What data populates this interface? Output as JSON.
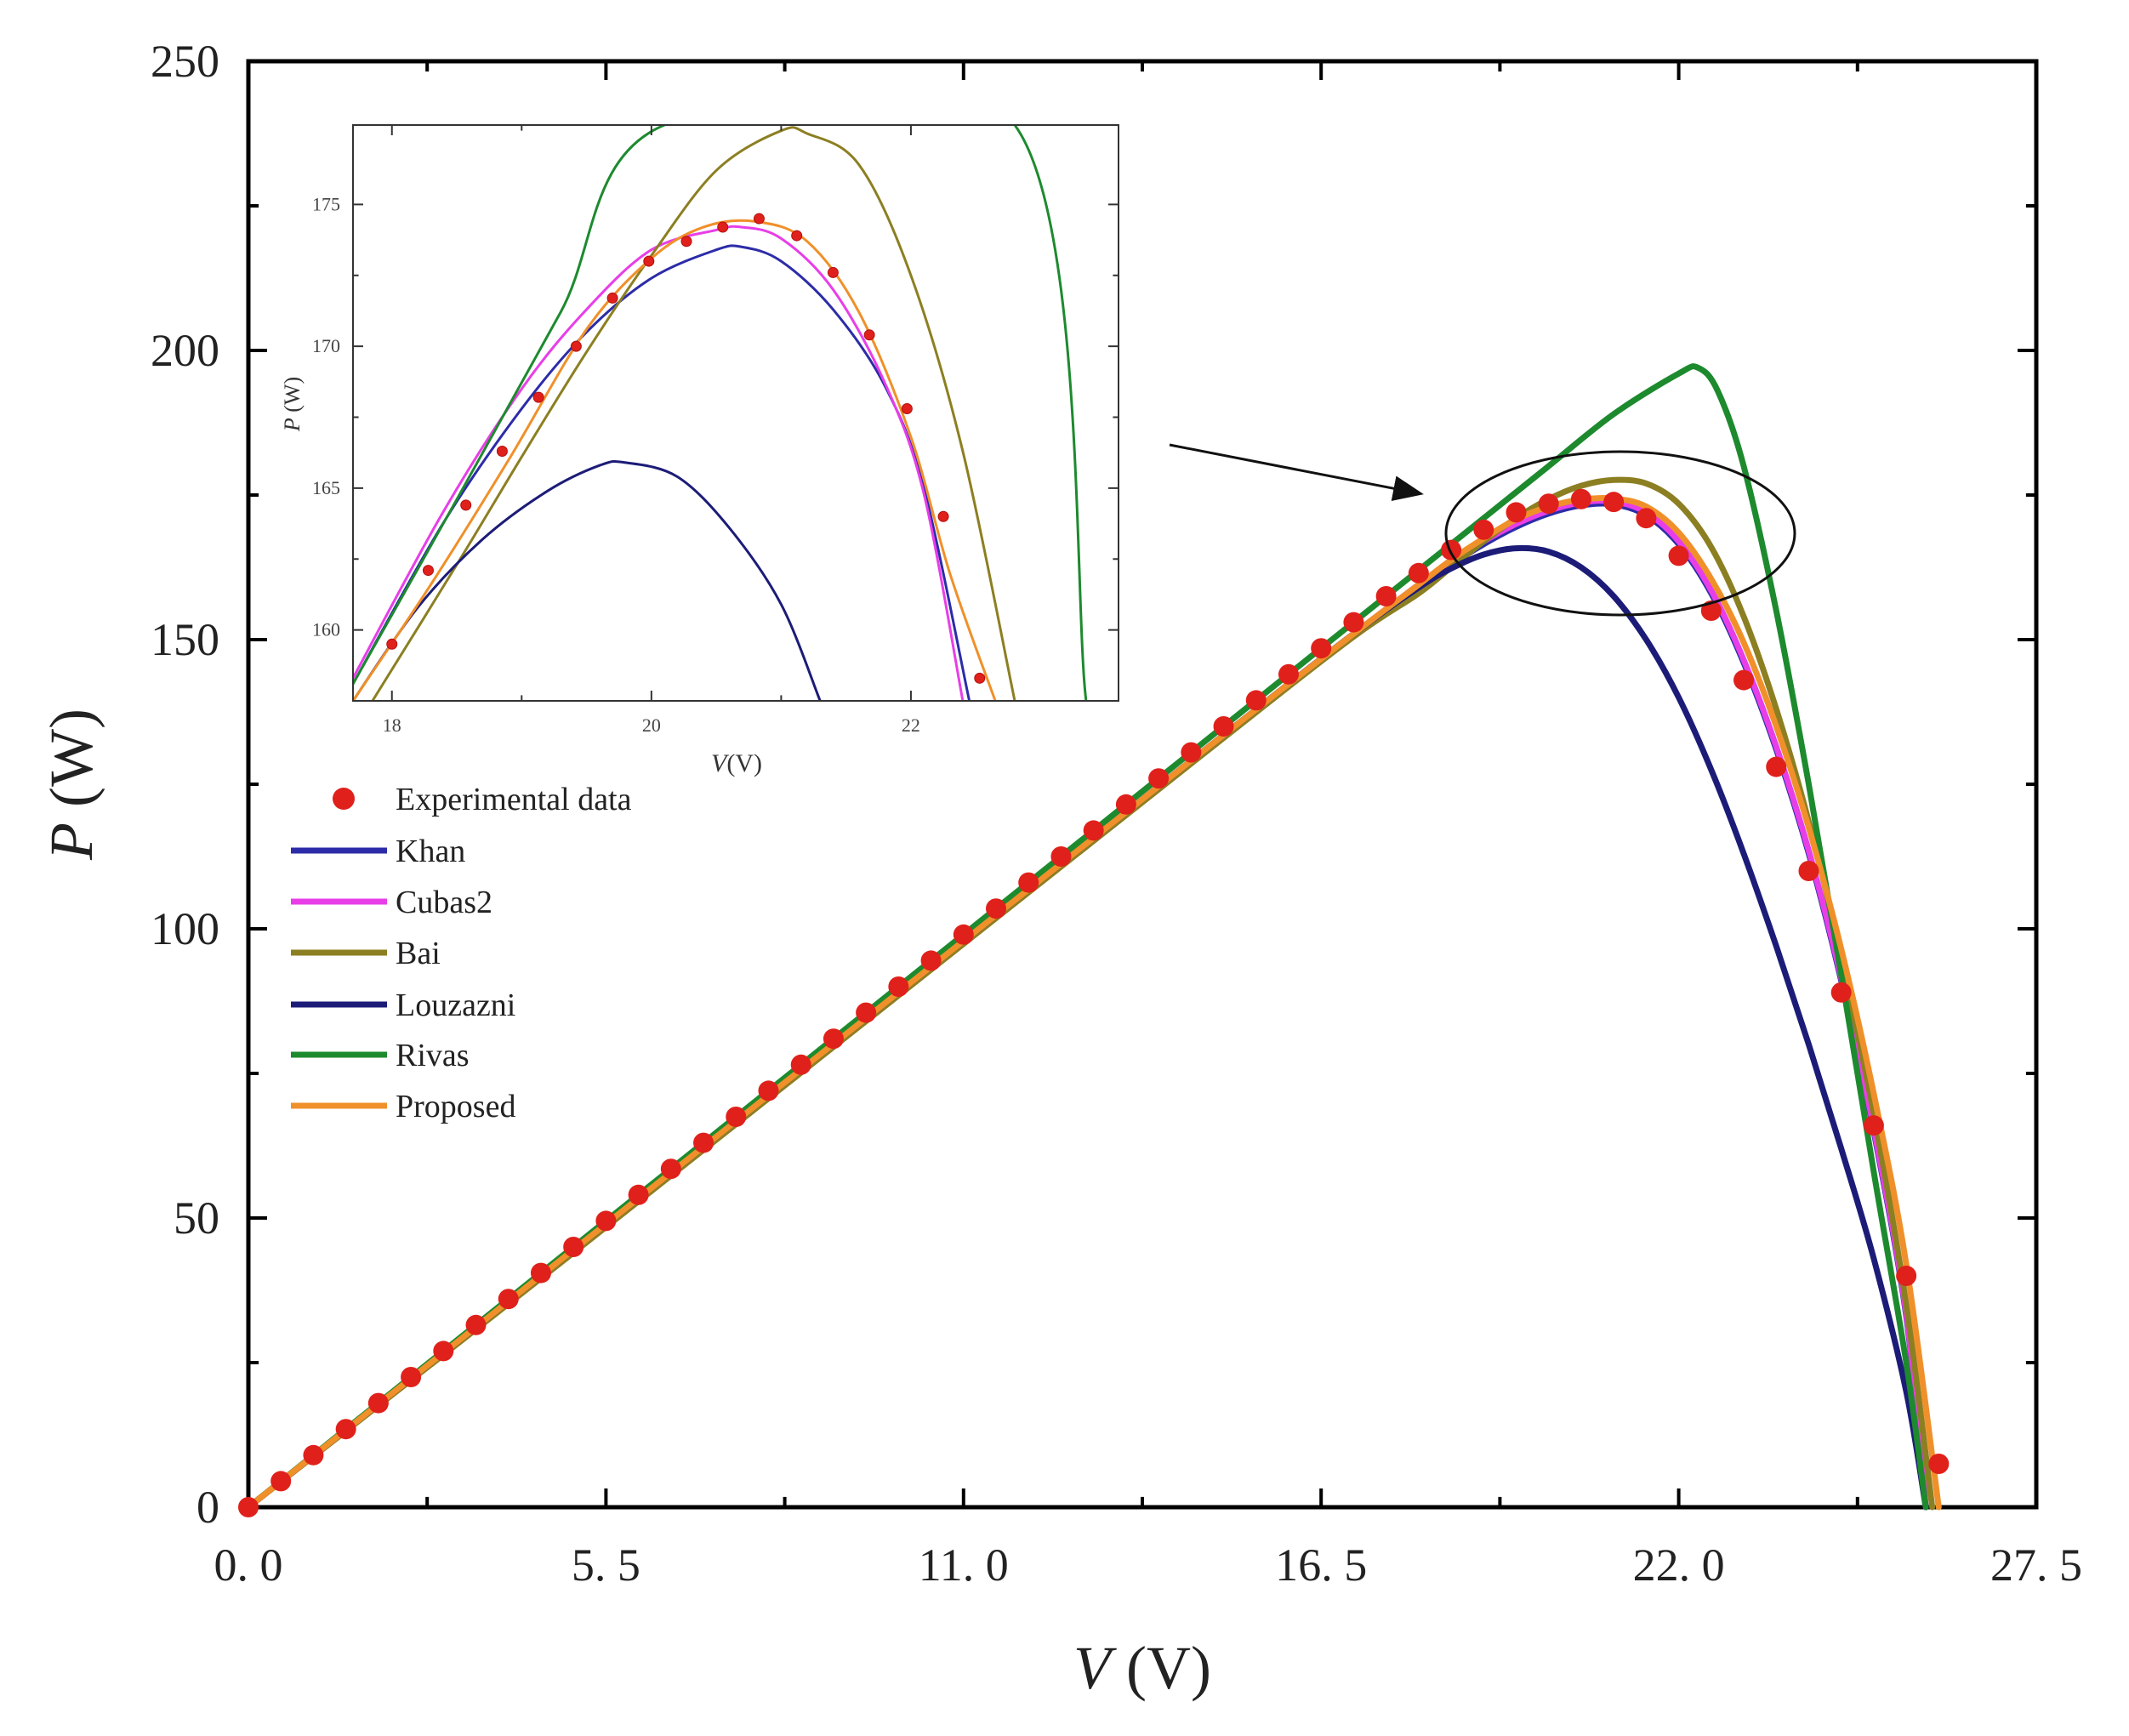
{
  "chart_data": [
    {
      "type": "line",
      "panel": "main",
      "title": "",
      "xlabel": {
        "symbol": "V",
        "unit": "(V)"
      },
      "ylabel": {
        "symbol": "P",
        "unit": "(W)"
      },
      "xlim": [
        0,
        27.5
      ],
      "ylim": [
        0,
        250
      ],
      "xticks": [
        0,
        5.5,
        11,
        16.5,
        22,
        27.5
      ],
      "xtick_labels": [
        "0. 0",
        "5. 5",
        "11. 0",
        "16. 5",
        "22. 0",
        "27. 5"
      ],
      "yticks": [
        0,
        50,
        100,
        150,
        200,
        250
      ],
      "ytick_labels": [
        "0",
        "50",
        "100",
        "150",
        "200",
        "250"
      ],
      "grid": false,
      "legend_position": "middle-left",
      "series": [
        {
          "name": "Experimental data",
          "style": "markers",
          "color": "#e0201b",
          "x": [
            0,
            0.5,
            1,
            1.5,
            2,
            2.5,
            3,
            3.5,
            4,
            4.5,
            5,
            5.5,
            6,
            6.5,
            7,
            7.5,
            8,
            8.5,
            9,
            9.5,
            10,
            10.5,
            11,
            11.5,
            12,
            12.5,
            13,
            13.5,
            14,
            14.5,
            15,
            15.5,
            16,
            16.5,
            17,
            17.5,
            18,
            18.5,
            19,
            19.5,
            20,
            20.5,
            21,
            21.5,
            22,
            22.5,
            23,
            23.5,
            24,
            24.5,
            25,
            25.5,
            26
          ],
          "y": [
            0,
            4.5,
            9,
            13.5,
            18,
            22.5,
            27,
            31.5,
            36,
            40.5,
            45,
            49.5,
            54,
            58.5,
            63,
            67.5,
            72,
            76.5,
            81,
            85.5,
            90,
            94.5,
            99,
            103.5,
            108,
            112.5,
            117,
            121.5,
            126,
            130.5,
            135,
            139.5,
            144,
            148.5,
            153,
            157.5,
            161.5,
            165.5,
            169,
            172,
            173.5,
            174.3,
            173.8,
            171,
            164.5,
            155,
            143,
            128,
            110,
            89,
            66,
            40,
            7.5
          ]
        },
        {
          "name": "Khan",
          "style": "line",
          "color": "#2c2ca8",
          "x": [
            0,
            5,
            10,
            15,
            17,
            18,
            18.5,
            19,
            19.5,
            20,
            20.5,
            21,
            21.5,
            22,
            22.5,
            23,
            23.5,
            24,
            24.5,
            25,
            25.5,
            25.8
          ],
          "y": [
            0,
            44.5,
            89,
            133.5,
            151,
            159,
            163,
            166.5,
            169.5,
            171.8,
            173.2,
            173.4,
            171.5,
            166.5,
            158,
            146,
            131,
            113,
            91,
            65,
            33,
            0
          ]
        },
        {
          "name": "Cubas2",
          "style": "line",
          "color": "#e83ee8",
          "x": [
            0,
            5,
            10,
            15,
            17,
            18,
            18.5,
            19,
            19.5,
            20,
            20.5,
            21,
            21.5,
            22,
            22.5,
            23,
            23.5,
            24,
            24.5,
            25,
            25.5,
            25.8
          ],
          "y": [
            0,
            44.5,
            89,
            133.5,
            151,
            159.5,
            163.5,
            167,
            170,
            172.3,
            173.7,
            173.9,
            172,
            167,
            158.5,
            146.5,
            131.5,
            113.5,
            91.5,
            65.5,
            33.5,
            0
          ]
        },
        {
          "name": "Bai",
          "style": "line",
          "color": "#8c7f22",
          "x": [
            0,
            5,
            10,
            15,
            17,
            18,
            18.5,
            19,
            19.5,
            20,
            20.5,
            21,
            21.5,
            22,
            22.5,
            23,
            23.5,
            24,
            24.5,
            25,
            25.5,
            25.9
          ],
          "y": [
            0,
            44,
            88.5,
            133,
            150.5,
            158,
            162.5,
            167,
            171,
            174.3,
            176.6,
            177.6,
            177,
            173.5,
            166,
            154,
            138,
            118.5,
            95,
            68,
            35,
            0
          ]
        },
        {
          "name": "Louzazni",
          "style": "line",
          "color": "#1c1c78",
          "x": [
            0,
            5,
            10,
            15,
            17,
            18,
            18.5,
            19,
            19.5,
            20,
            20.5,
            21,
            21.5,
            22,
            22.5,
            23,
            23.5,
            24,
            24.5,
            25,
            25.5,
            25.8
          ],
          "y": [
            0,
            44.5,
            89,
            133.5,
            151,
            159,
            162.3,
            164.7,
            165.8,
            165.2,
            162.5,
            157.5,
            150,
            140,
            127.5,
            113,
            97,
            80,
            62,
            43,
            20,
            0
          ]
        },
        {
          "name": "Rivas",
          "style": "line",
          "color": "#1d8a2e",
          "x": [
            0,
            5,
            10,
            15,
            17,
            18,
            19,
            20,
            21,
            22,
            22.3,
            22.6,
            23,
            23.5,
            24,
            24.5,
            25,
            25.5,
            25.8
          ],
          "y": [
            0,
            45,
            90,
            135,
            153,
            162,
            171,
            180,
            189,
            196,
            197,
            193,
            180,
            155,
            125,
            92,
            58,
            25,
            0
          ]
        },
        {
          "name": "Proposed",
          "style": "line",
          "color": "#f0902a",
          "x": [
            0,
            5,
            10,
            15,
            17,
            18,
            18.5,
            19,
            19.5,
            20,
            20.5,
            21,
            21.5,
            22,
            22.5,
            23,
            23.5,
            24,
            24.5,
            25,
            25.5,
            26
          ],
          "y": [
            0,
            44.5,
            89,
            133.5,
            151,
            159.5,
            163.8,
            167.5,
            170.8,
            173,
            174.2,
            174.4,
            173,
            168.5,
            160.5,
            149.5,
            135,
            117.5,
            96.5,
            71.5,
            42,
            0
          ]
        }
      ],
      "annotations": {
        "ellipse": "highlights the maximum power point region",
        "arrow": "points to the zoomed inset"
      }
    },
    {
      "type": "line",
      "panel": "inset",
      "title": "",
      "xlabel": {
        "symbol": "V",
        "unit": "(V)"
      },
      "ylabel": {
        "symbol": "P",
        "unit": "(W)"
      },
      "xlim": [
        17.7,
        23.6
      ],
      "ylim": [
        157.5,
        177.8
      ],
      "xticks": [
        18,
        20,
        22
      ],
      "xtick_labels": [
        "18",
        "20",
        "22"
      ],
      "yticks": [
        160,
        165,
        170,
        175
      ],
      "ytick_labels": [
        "160",
        "165",
        "170",
        "175"
      ],
      "grid": false,
      "series": [
        {
          "name": "Experimental data",
          "style": "markers",
          "color": "#e0201b",
          "x": [
            18,
            18.28,
            18.57,
            18.85,
            19.13,
            19.42,
            19.7,
            19.98,
            20.27,
            20.55,
            20.83,
            21.12,
            21.4,
            21.68,
            21.97,
            22.25,
            22.53
          ],
          "y": [
            159.5,
            162.1,
            164.4,
            166.3,
            168.2,
            170,
            171.7,
            173,
            173.7,
            174.2,
            174.5,
            173.9,
            172.6,
            170.4,
            167.8,
            164,
            158.3
          ]
        },
        {
          "name": "Khan",
          "style": "line",
          "color": "#2c2ca8",
          "x": [
            17.7,
            18.4,
            19,
            19.5,
            20,
            20.5,
            20.7,
            21,
            21.4,
            21.8,
            22.1,
            22.45
          ],
          "y": [
            158.1,
            163.8,
            167.8,
            170.5,
            172.4,
            173.4,
            173.5,
            173,
            171.3,
            168.6,
            165,
            157.5
          ]
        },
        {
          "name": "Cubas2",
          "style": "line",
          "color": "#e83ee8",
          "x": [
            17.7,
            18.4,
            19,
            19.5,
            20,
            20.5,
            20.7,
            21,
            21.4,
            21.8,
            22.1,
            22.4
          ],
          "y": [
            158.3,
            164.2,
            168.5,
            171.3,
            173.4,
            174.1,
            174.2,
            173.8,
            172,
            168.7,
            164.8,
            157.5
          ]
        },
        {
          "name": "Bai",
          "style": "line",
          "color": "#8c7f22",
          "x": [
            17.85,
            18.5,
            19,
            19.5,
            20,
            20.5,
            21,
            21.2,
            21.6,
            22,
            22.4,
            22.8
          ],
          "y": [
            157.5,
            162.3,
            166.1,
            169.8,
            173.2,
            176.2,
            177.6,
            177.5,
            176.4,
            172.5,
            166.3,
            157.5
          ]
        },
        {
          "name": "Louzazni",
          "style": "line",
          "color": "#1c1c78",
          "x": [
            17.7,
            18.2,
            18.7,
            19.2,
            19.6,
            19.8,
            20.2,
            20.6,
            21,
            21.3
          ],
          "y": [
            157.5,
            160.8,
            163.2,
            164.9,
            165.8,
            165.9,
            165.4,
            163.6,
            160.9,
            157.5
          ]
        },
        {
          "name": "Rivas",
          "style": "line",
          "color": "#1d8a2e",
          "x": [
            17.7,
            18.5,
            19.3,
            20.1,
            22.8,
            23.35
          ],
          "y": [
            158.1,
            164.6,
            171.2,
            177.8,
            177.8,
            157.5
          ]
        },
        {
          "name": "Proposed",
          "style": "line",
          "color": "#f0902a",
          "x": [
            17.7,
            18.3,
            18.9,
            19.5,
            20,
            20.4,
            20.8,
            21.2,
            21.6,
            22,
            22.3,
            22.65
          ],
          "y": [
            157.5,
            161.6,
            166,
            170.6,
            173.1,
            174.2,
            174.4,
            173.7,
            171.2,
            166.8,
            162,
            157.5
          ]
        }
      ]
    }
  ]
}
